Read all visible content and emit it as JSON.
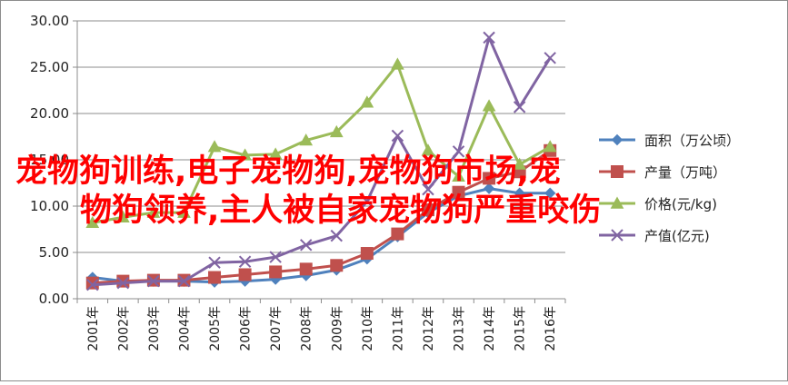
{
  "chart_data": {
    "type": "line",
    "categories": [
      "2001年",
      "2002年",
      "2003年",
      "2004年",
      "2005年",
      "2006年",
      "2007年",
      "2008年",
      "2009年",
      "2010年",
      "2011年",
      "2012年",
      "2013年",
      "2014年",
      "2015年",
      "2016年"
    ],
    "ylim": [
      0,
      30
    ],
    "yticks": [
      "0.00",
      "5.00",
      "10.00",
      "15.00",
      "20.00",
      "25.00",
      "30.00"
    ],
    "grid": true,
    "legend_position": "right",
    "series": [
      {
        "name": "面积（万公顷）",
        "color": "#4f81bd",
        "marker": "diamond",
        "values": [
          2.3,
          1.9,
          1.9,
          1.9,
          1.8,
          1.9,
          2.1,
          2.5,
          3.1,
          4.3,
          6.7,
          9.3,
          11.1,
          11.9,
          11.4,
          11.4
        ]
      },
      {
        "name": "产量（万吨）",
        "color": "#c0504d",
        "marker": "square",
        "values": [
          1.7,
          1.9,
          2.0,
          2.0,
          2.3,
          2.6,
          2.9,
          3.2,
          3.6,
          4.9,
          7.0,
          9.6,
          11.5,
          13.0,
          13.7,
          16.0
        ]
      },
      {
        "name": "价格(元/kg)",
        "color": "#9bbb59",
        "marker": "triangle",
        "values": [
          8.2,
          8.8,
          9.3,
          9.3,
          16.4,
          15.5,
          15.6,
          17.1,
          18.0,
          21.2,
          25.3,
          16.0,
          13.2,
          20.8,
          14.5,
          16.4
        ]
      },
      {
        "name": "产值(亿元)",
        "color": "#8064a2",
        "marker": "x",
        "values": [
          1.5,
          1.7,
          1.9,
          1.9,
          3.9,
          4.0,
          4.5,
          5.8,
          6.8,
          10.5,
          17.6,
          11.8,
          15.9,
          28.2,
          20.7,
          26.0
        ]
      }
    ]
  },
  "overlay": {
    "line1": "宠物狗训练,电子宠物狗,宠物狗市场,宠",
    "line2": "物狗领养,主人被自家宠物狗严重咬伤"
  }
}
